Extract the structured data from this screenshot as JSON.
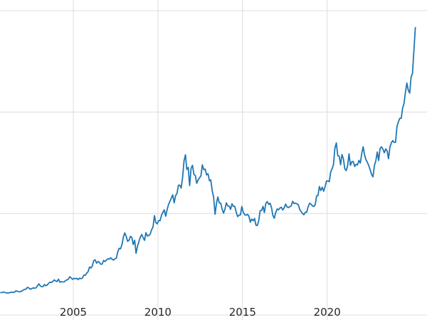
{
  "page": {
    "background_color": "#ffffff"
  },
  "chart_data": {
    "type": "line",
    "title": "",
    "xlabel": "",
    "ylabel": "",
    "legend": false,
    "grid": true,
    "y_tick_labels_visible": false,
    "x_tick_labels": [
      "2005",
      "2010",
      "2015",
      "2020"
    ],
    "x_tick_values": [
      2005,
      2010,
      2015,
      2020
    ],
    "xlim": [
      2000.67,
      2025.9
    ],
    "ylim": [
      -59,
      3726
    ],
    "y_grid_values": [
      0,
      1200,
      2400,
      3600
    ],
    "line_color": "#1f77b4",
    "grid_color": "#dcdcdc",
    "tick_label_color": "#262626",
    "tick_label_font_size": 15,
    "x_start": 2000.71,
    "x_step": 0.0833333,
    "series": [
      {
        "name": "",
        "color": "#1f77b4",
        "values": [
          265,
          266,
          272,
          266,
          262,
          258,
          263,
          267,
          271,
          266,
          274,
          287,
          280,
          275,
          277,
          282,
          297,
          302,
          308,
          327,
          319,
          304,
          313,
          320,
          317,
          320,
          343,
          368,
          347,
          335,
          336,
          361,
          346,
          355,
          376,
          388,
          385,
          398,
          415,
          402,
          396,
          424,
          388,
          394,
          392,
          391,
          407,
          415,
          425,
          453,
          438,
          422,
          435,
          428,
          435,
          418,
          437,
          429,
          438,
          473,
          470,
          495,
          513,
          568,
          556,
          582,
          644,
          653,
          613,
          633,
          623,
          599,
          604,
          646,
          632,
          651,
          665,
          662,
          677,
          659,
          650,
          665,
          672,
          743,
          789,
          783,
          833,
          923,
          971,
          933,
          871,
          885,
          930,
          918,
          833,
          884,
          730,
          814,
          870,
          919,
          952,
          916,
          883,
          975,
          934,
          939,
          955,
          1008,
          1040,
          1175,
          1096,
          1078,
          1118,
          1115,
          1179,
          1215,
          1244,
          1169,
          1246,
          1307,
          1346,
          1383,
          1421,
          1327,
          1411,
          1439,
          1535,
          1536,
          1502,
          1628,
          1825,
          1895,
          1722,
          1746,
          1531,
          1737,
          1770,
          1662,
          1651,
          1558,
          1598,
          1622,
          1648,
          1776,
          1719,
          1726,
          1657,
          1671,
          1588,
          1598,
          1469,
          1394,
          1192,
          1323,
          1396,
          1326,
          1324,
          1253,
          1205,
          1251,
          1326,
          1291,
          1288,
          1250,
          1315,
          1285,
          1285,
          1216,
          1164,
          1182,
          1184,
          1283,
          1214,
          1187,
          1180,
          1191,
          1171,
          1098,
          1135,
          1114,
          1142,
          1061,
          1060,
          1118,
          1234,
          1237,
          1285,
          1212,
          1320,
          1342,
          1309,
          1322,
          1272,
          1178,
          1145,
          1212,
          1255,
          1244,
          1266,
          1275,
          1242,
          1267,
          1311,
          1280,
          1271,
          1280,
          1291,
          1345,
          1318,
          1323,
          1315,
          1305,
          1250,
          1224,
          1202,
          1187,
          1215,
          1217,
          1281,
          1321,
          1313,
          1292,
          1283,
          1305,
          1409,
          1414,
          1520,
          1472,
          1511,
          1464,
          1517,
          1584,
          1586,
          1577,
          1694,
          1730,
          1781,
          1976,
          2035,
          1886,
          1879,
          1777,
          1898,
          1848,
          1729,
          1708,
          1768,
          1907,
          1770,
          1814,
          1815,
          1757,
          1783,
          1775,
          1829,
          1797,
          1909,
          1990,
          1897,
          1837,
          1807,
          1766,
          1716,
          1661,
          1634,
          1769,
          1824,
          1928,
          1827,
          1969,
          1990,
          1962,
          1919,
          1965,
          1940,
          1849,
          1983,
          2036,
          2063,
          2040,
          2044,
          2230,
          2286,
          2327,
          2326,
          2448,
          2503,
          2635,
          2744,
          2657,
          2625,
          2812,
          2858,
          3124,
          3400
        ]
      }
    ]
  }
}
